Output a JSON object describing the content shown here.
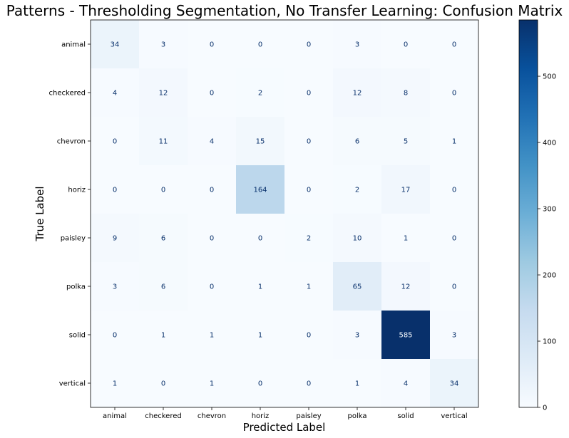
{
  "chart_data": {
    "type": "heatmap",
    "title": "Patterns - Thresholding Segmentation, No Transfer Learning: Confusion Matrix",
    "xlabel": "Predicted Label",
    "ylabel": "True Label",
    "x_categories": [
      "animal",
      "checkered",
      "chevron",
      "horiz",
      "paisley",
      "polka",
      "solid",
      "vertical"
    ],
    "y_categories": [
      "animal",
      "checkered",
      "chevron",
      "horiz",
      "paisley",
      "polka",
      "solid",
      "vertical"
    ],
    "matrix": [
      [
        34,
        3,
        0,
        0,
        0,
        3,
        0,
        0
      ],
      [
        4,
        12,
        0,
        2,
        0,
        12,
        8,
        0
      ],
      [
        0,
        11,
        4,
        15,
        0,
        6,
        5,
        1
      ],
      [
        0,
        0,
        0,
        164,
        0,
        2,
        17,
        0
      ],
      [
        9,
        6,
        0,
        0,
        2,
        10,
        1,
        0
      ],
      [
        3,
        6,
        0,
        1,
        1,
        65,
        12,
        0
      ],
      [
        0,
        1,
        1,
        1,
        0,
        3,
        585,
        3
      ],
      [
        1,
        0,
        1,
        0,
        0,
        1,
        4,
        34
      ]
    ],
    "colormap": "Blues",
    "colorbar": {
      "min": 0,
      "max": 585,
      "ticks": [
        0,
        100,
        200,
        300,
        400,
        500
      ]
    },
    "colors": {
      "low": "#f7fbff",
      "high": "#08306b",
      "text_dark": "#08306b",
      "text_light": "#f7fbff"
    }
  }
}
